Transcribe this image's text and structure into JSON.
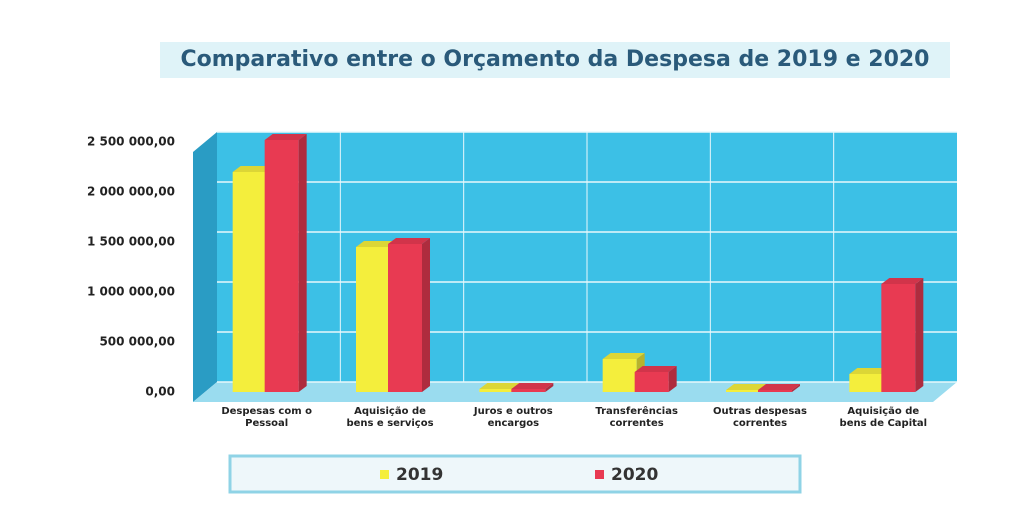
{
  "chart_data": {
    "type": "bar",
    "title": "Comparativo entre o Orçamento da Despesa de 2019 e 2020",
    "categories": [
      "Despesas com o\nPessoal",
      "Aquisição de\nbens e serviços",
      "Juros e outros\nencargos",
      "Transferências\ncorrentes",
      "Outras despesas\ncorrentes",
      "Aquisição de\nbens de Capital"
    ],
    "series": [
      {
        "name": "2019",
        "color": "#f4ee3c",
        "values": [
          2200000,
          1450000,
          30000,
          330000,
          20000,
          180000
        ]
      },
      {
        "name": "2020",
        "color": "#e83a52",
        "values": [
          2520000,
          1480000,
          30000,
          200000,
          20000,
          1080000
        ]
      }
    ],
    "ylim": [
      0,
      2500000
    ],
    "yticks": [
      {
        "value": 0,
        "label": "0,00"
      },
      {
        "value": 500000,
        "label": "500 000,00"
      },
      {
        "value": 1000000,
        "label": "1 000 000,00"
      },
      {
        "value": 1500000,
        "label": "1 500 000,00"
      },
      {
        "value": 2000000,
        "label": "2 000 000,00"
      },
      {
        "value": 2500000,
        "label": "2 500 000,00"
      }
    ],
    "grid": true,
    "legend": "bottom"
  }
}
